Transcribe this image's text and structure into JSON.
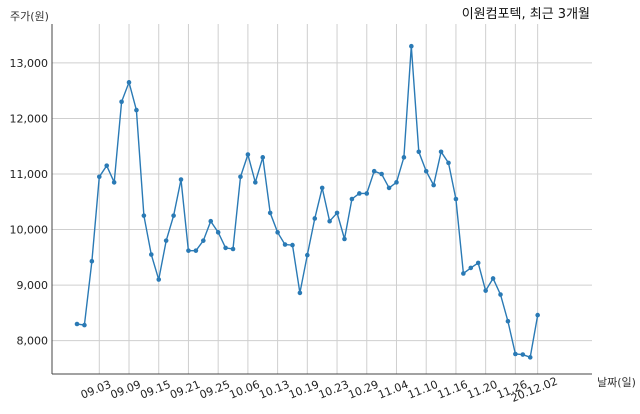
{
  "chart_data": {
    "type": "line",
    "title": "이원컴포텍, 최근 3개월",
    "ylabel": "주가(원)",
    "xlabel": "날짜(일)",
    "ylim": [
      7400,
      13700
    ],
    "yticks": [
      8000,
      9000,
      10000,
      11000,
      12000,
      13000
    ],
    "ytick_labels": [
      "8,000",
      "9,000",
      "10,000",
      "11,000",
      "12,000",
      "13,000"
    ],
    "xtick_labels": [
      "09.03",
      "09.09",
      "09.15",
      "09.21",
      "09.25",
      "10.06",
      "10.13",
      "10.19",
      "10.23",
      "10.29",
      "11.04",
      "11.10",
      "11.16",
      "11.20",
      "11.26",
      "20.12.02"
    ],
    "xtick_positions": [
      3,
      7,
      11,
      15,
      19,
      23,
      27,
      31,
      35,
      39,
      43,
      47,
      51,
      55,
      59,
      62
    ],
    "grid": true,
    "line_color": "#2a7ab5",
    "series": [
      {
        "values": [
          8300,
          8280,
          9430,
          10950,
          11150,
          10850,
          12300,
          12650,
          12150,
          10250,
          9550,
          9100,
          9800,
          10250,
          10900,
          9620,
          9620,
          9800,
          10150,
          9950,
          9670,
          9650,
          10950,
          11350,
          10850,
          11300,
          10300,
          9950,
          9730,
          9720,
          8860,
          9540,
          10200,
          10750,
          10150,
          10300,
          9830,
          10550,
          10650,
          10650,
          11050,
          11000,
          10750,
          10850,
          11300,
          13300,
          11400,
          11050,
          10800,
          11400,
          11200,
          10550,
          9210,
          9310,
          9400,
          8900,
          9120,
          8830,
          8350,
          7760,
          7750,
          7700,
          8460
        ]
      }
    ]
  }
}
